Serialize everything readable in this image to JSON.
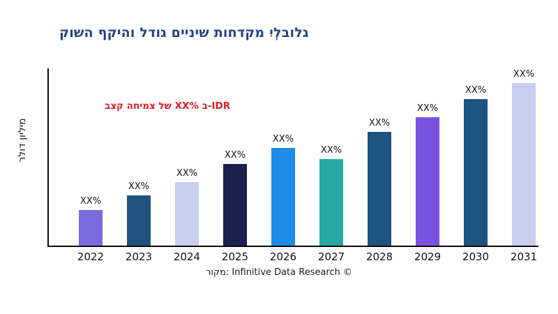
{
  "colors": {
    "title": "#24418A",
    "annotation": "#E31B23",
    "axis": "#0a0a0a",
    "tick_label": "#111111"
  },
  "footer": {
    "text": "רוקמ: Infinitive Data Research ©"
  },
  "chart_data": {
    "type": "bar",
    "title": "קושה ףקיהו לדוג םייניש תוחדקמ יִלְבולג",
    "annotation": "בצק החימצ לש XX% ב-IDR",
    "xlabel": "",
    "ylabel": "רלוד ןוילימ",
    "categories": [
      "2022",
      "2023",
      "2024",
      "2025",
      "2026",
      "2027",
      "2028",
      "2029",
      "2030",
      "2031"
    ],
    "values": [
      22,
      31,
      39,
      50,
      60,
      53,
      70,
      79,
      90,
      100
    ],
    "bar_labels": [
      "XX%",
      "XX%",
      "XX%",
      "XX%",
      "XX%",
      "XX%",
      "XX%",
      "XX%",
      "XX%",
      "XX%"
    ],
    "bar_colors": [
      "#7A6CDF",
      "#1E527F",
      "#C8CEF0",
      "#191F4E",
      "#1E8BE8",
      "#27A8A2",
      "#1E527F",
      "#7A52E0",
      "#1E527F",
      "#C8CEF0"
    ],
    "ylim": [
      0,
      108
    ],
    "grid": false,
    "legend": null,
    "y_tick_labels": []
  }
}
